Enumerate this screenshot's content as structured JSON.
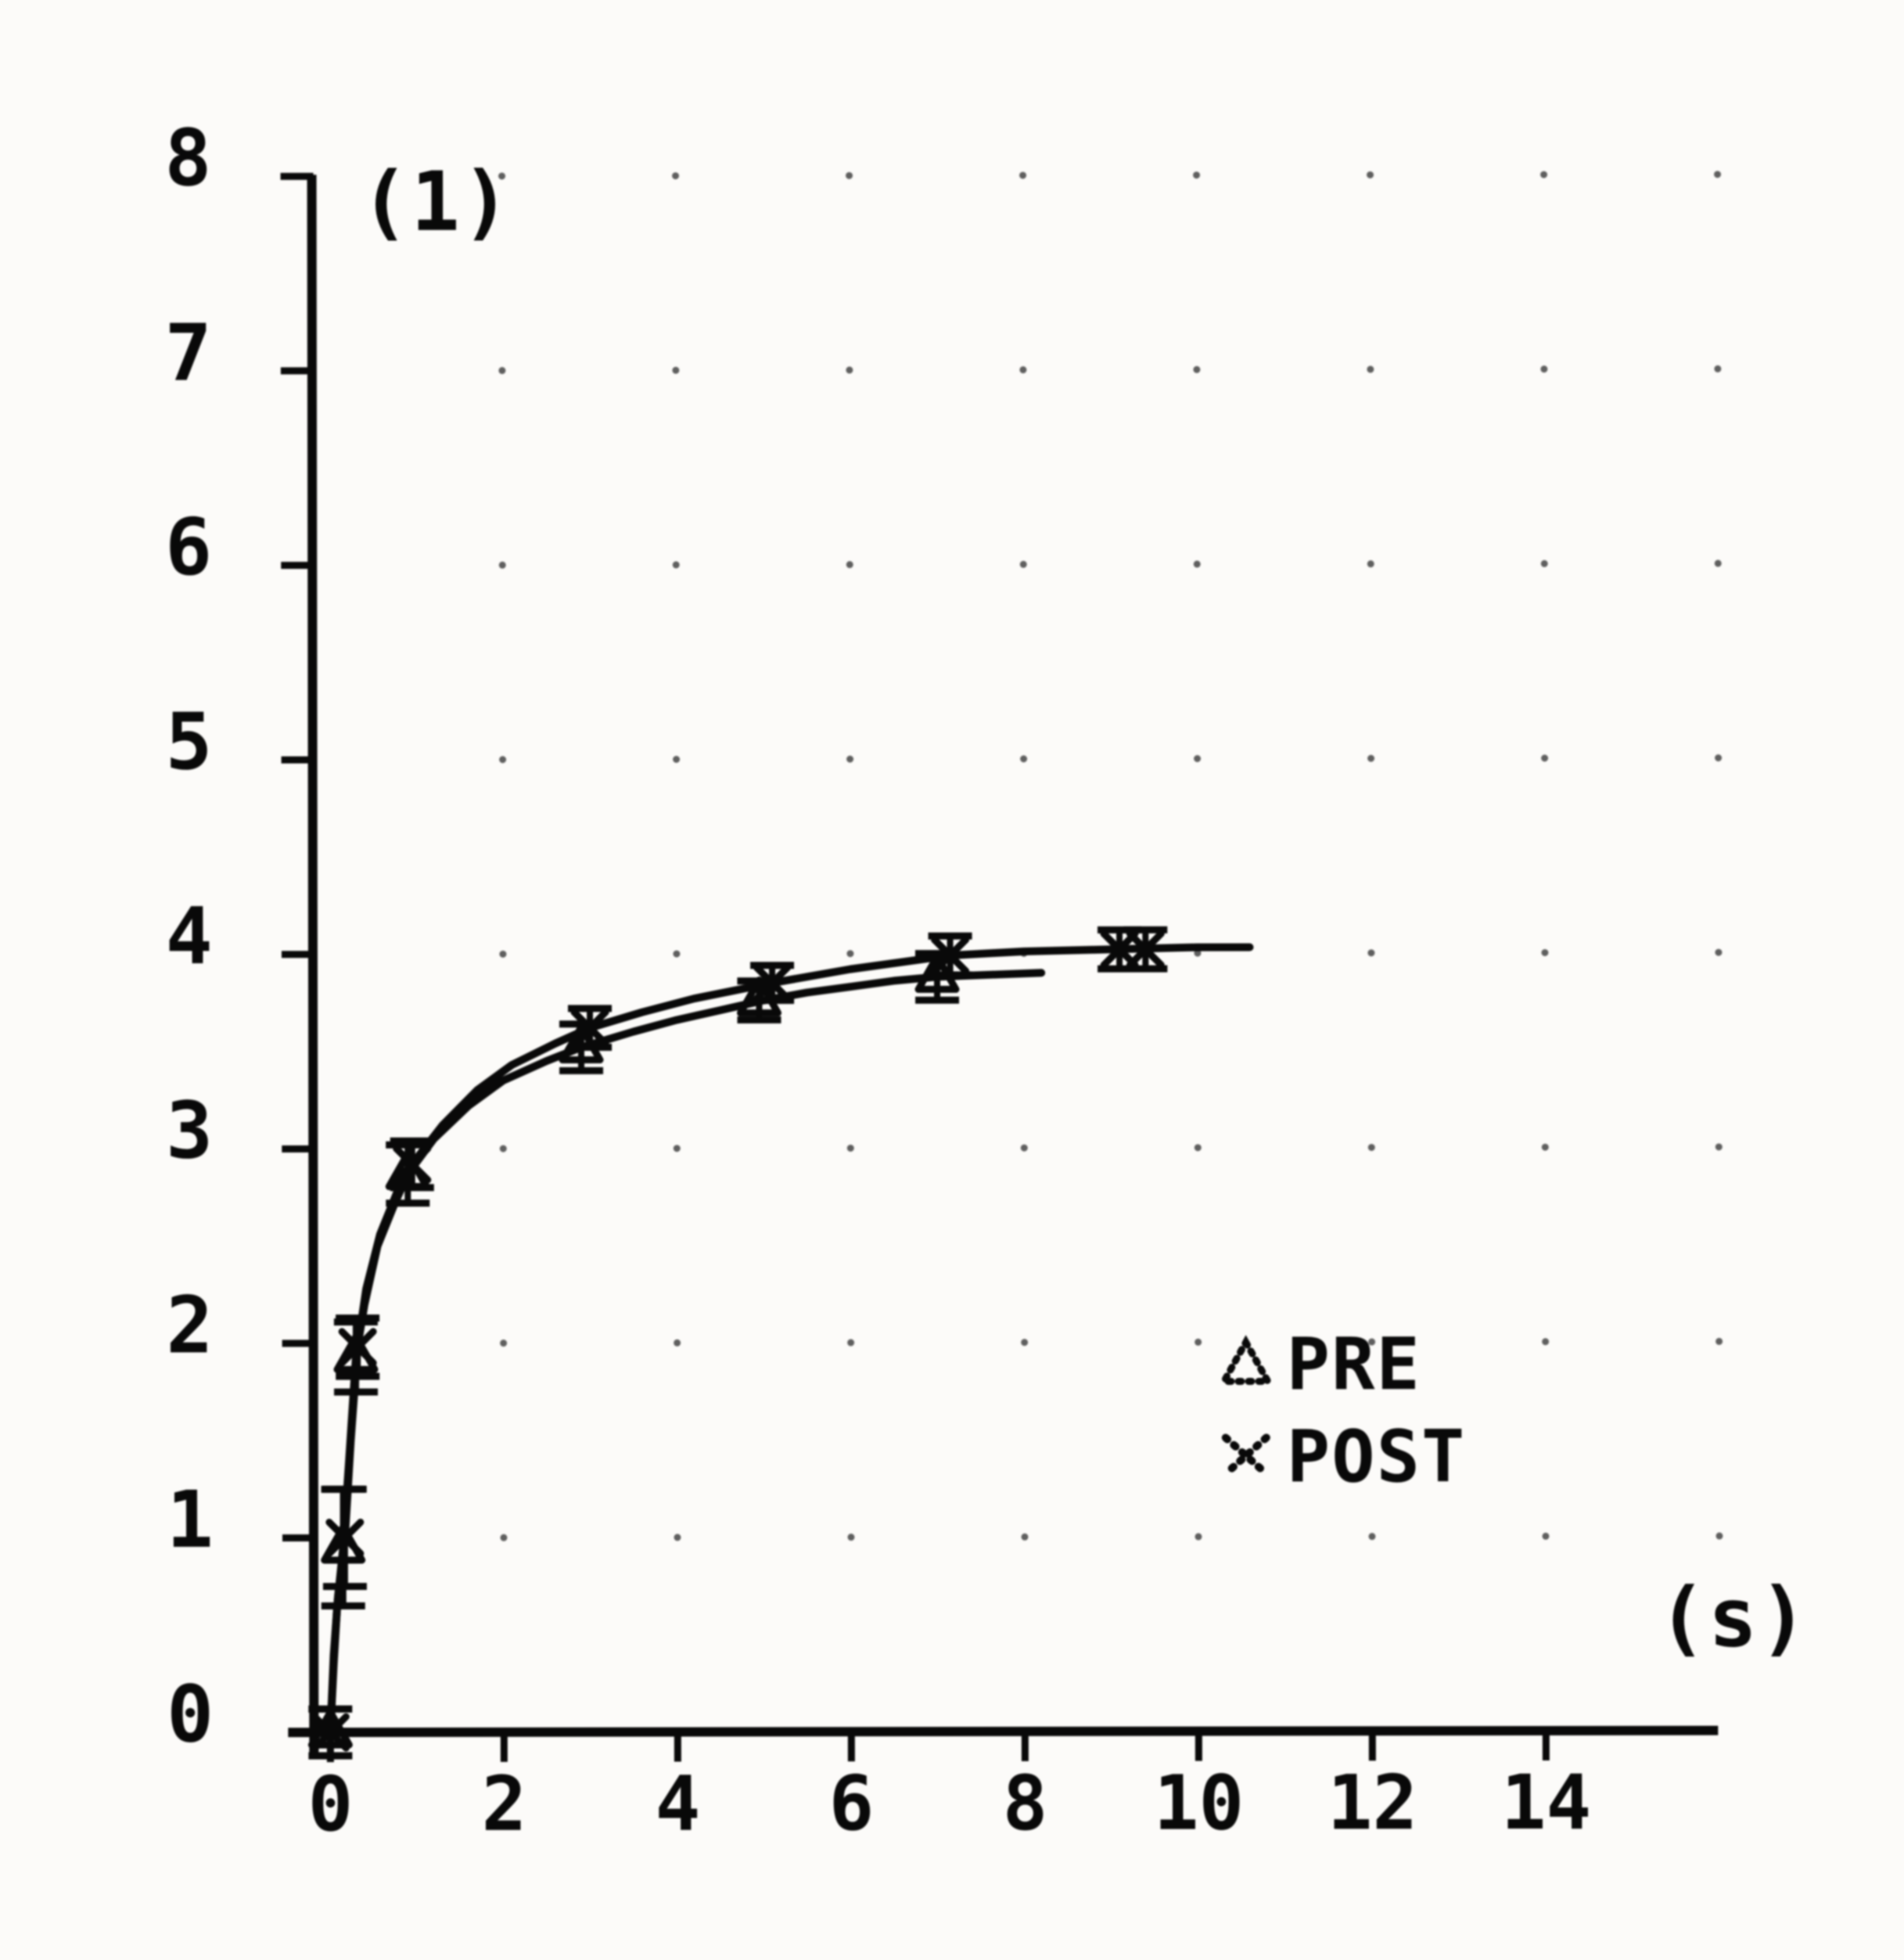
{
  "figure": {
    "background": "#fcfbf9",
    "ink_color": "#161616",
    "grid_dot_color": "#4a4a4a",
    "annotation_top_left": "(1)",
    "x_unit_label": "(s)"
  },
  "legend": {
    "items": [
      {
        "marker": "triangle-outline",
        "label": "PRE"
      },
      {
        "marker": "x-cross",
        "label": "POST"
      }
    ]
  },
  "chart_data": {
    "type": "line",
    "title": "",
    "ylabel": "(1)",
    "xlabel": "(s)",
    "xlim": [
      0,
      16
    ],
    "ylim": [
      0,
      8
    ],
    "xticks": [
      0,
      2,
      4,
      6,
      8,
      10,
      12,
      14
    ],
    "yticks": [
      0,
      1,
      2,
      3,
      4,
      5,
      6,
      7,
      8
    ],
    "grid": "dotted-intersections",
    "grid_x": [
      2,
      4,
      6,
      8,
      10,
      12,
      14,
      16
    ],
    "grid_y": [
      1,
      2,
      3,
      4,
      5,
      6,
      7,
      8
    ],
    "legend_position": "right-middle",
    "series": [
      {
        "name": "PRE",
        "marker": "triangle",
        "points": [
          [
            0,
            0,
            0.12
          ],
          [
            0.15,
            0.95,
            0.3
          ],
          [
            0.3,
            1.93,
            0.18
          ],
          [
            0.9,
            2.87,
            0.15
          ],
          [
            2.9,
            3.52,
            0.12
          ],
          [
            4.95,
            3.76,
            0.1
          ],
          [
            7.0,
            3.88,
            0.12
          ]
        ],
        "curve": [
          [
            0,
            0
          ],
          [
            0.04,
            0.35
          ],
          [
            0.08,
            0.65
          ],
          [
            0.15,
            0.95
          ],
          [
            0.22,
            1.4
          ],
          [
            0.3,
            1.93
          ],
          [
            0.4,
            2.2
          ],
          [
            0.55,
            2.5
          ],
          [
            0.75,
            2.72
          ],
          [
            0.9,
            2.87
          ],
          [
            1.2,
            3.05
          ],
          [
            1.6,
            3.22
          ],
          [
            2.0,
            3.35
          ],
          [
            2.5,
            3.45
          ],
          [
            2.9,
            3.52
          ],
          [
            3.5,
            3.6
          ],
          [
            4.0,
            3.66
          ],
          [
            4.5,
            3.71
          ],
          [
            5.0,
            3.76
          ],
          [
            5.5,
            3.8
          ],
          [
            6.0,
            3.83
          ],
          [
            6.5,
            3.86
          ],
          [
            7.0,
            3.88
          ],
          [
            7.6,
            3.89
          ],
          [
            8.2,
            3.9
          ]
        ]
      },
      {
        "name": "POST",
        "marker": "x",
        "points": [
          [
            0,
            0,
            0.12
          ],
          [
            0.17,
            1.0,
            0.25
          ],
          [
            0.32,
            1.98,
            0.15
          ],
          [
            0.95,
            2.92,
            0.12
          ],
          [
            3.0,
            3.62,
            0.1
          ],
          [
            5.1,
            3.85,
            0.09
          ],
          [
            7.15,
            3.99,
            0.1
          ],
          [
            9.1,
            4.02,
            0.1
          ],
          [
            9.4,
            4.02,
            0.1
          ]
        ],
        "curve": [
          [
            0,
            0
          ],
          [
            0.04,
            0.4
          ],
          [
            0.09,
            0.7
          ],
          [
            0.17,
            1.0
          ],
          [
            0.24,
            1.5
          ],
          [
            0.32,
            1.98
          ],
          [
            0.42,
            2.28
          ],
          [
            0.58,
            2.56
          ],
          [
            0.78,
            2.78
          ],
          [
            0.95,
            2.92
          ],
          [
            1.3,
            3.12
          ],
          [
            1.7,
            3.3
          ],
          [
            2.1,
            3.43
          ],
          [
            2.6,
            3.54
          ],
          [
            3.0,
            3.62
          ],
          [
            3.6,
            3.7
          ],
          [
            4.2,
            3.77
          ],
          [
            5.1,
            3.85
          ],
          [
            6.0,
            3.92
          ],
          [
            7.15,
            3.99
          ],
          [
            8.0,
            4.01
          ],
          [
            9.0,
            4.02
          ],
          [
            10.0,
            4.03
          ],
          [
            10.6,
            4.03
          ]
        ]
      }
    ]
  }
}
